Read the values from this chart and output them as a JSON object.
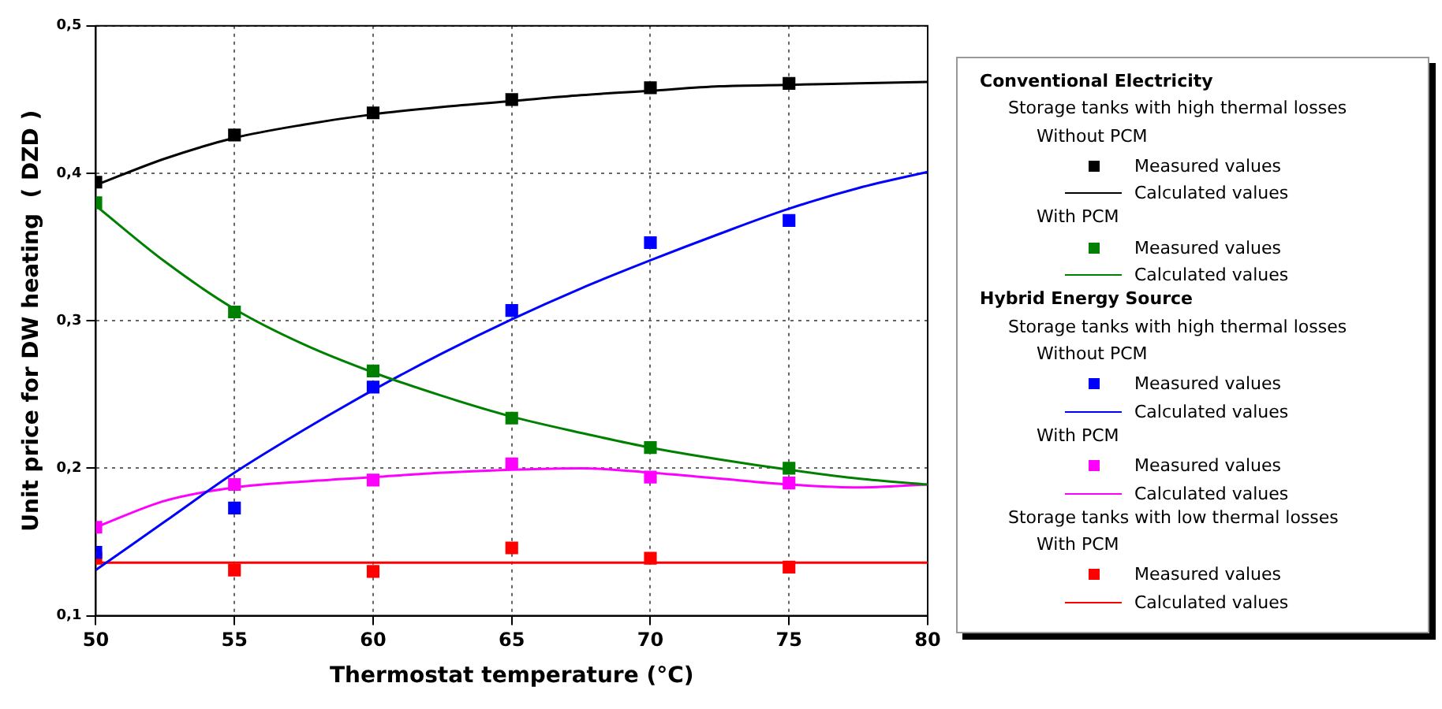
{
  "chart_data": {
    "type": "line",
    "xlabel": "Thermostat temperature (°C)",
    "ylabel": "Unit price for DW heating  ( DZD )",
    "xlim": [
      50,
      80
    ],
    "xticks": [
      50,
      55,
      60,
      65,
      70,
      75,
      80
    ],
    "ylim": [
      0.1,
      0.5
    ],
    "yticks": [
      {
        "value": 0.1,
        "label": "0,1"
      },
      {
        "value": 0.2,
        "label": "0,2"
      },
      {
        "value": 0.3,
        "label": "0,3"
      },
      {
        "value": 0.4,
        "label": "0,4"
      },
      {
        "value": 0.5,
        "label": "0,5"
      }
    ],
    "grid": true,
    "legend": "right",
    "line_style": "solid",
    "annotations": [
      "Conventional Electricity",
      "Storage tanks with high thermal losses",
      "Without PCM",
      "With PCM",
      "Hybrid Energy Source",
      "Storage tanks with high thermal losses",
      "Without PCM",
      "With PCM",
      "Storage tanks with low thermal losses",
      "With PCM"
    ],
    "series": [
      {
        "name": "Measured values",
        "type": "scatter",
        "marker": "square",
        "color": "#000000",
        "x": [
          50,
          55,
          60,
          65,
          70,
          75
        ],
        "values": [
          0.394,
          0.426,
          0.441,
          0.45,
          0.458,
          0.461
        ]
      },
      {
        "name": "Calculated values",
        "type": "line",
        "marker": "none",
        "color": "#000000",
        "x": [
          50,
          52.5,
          55,
          57.5,
          60,
          62.5,
          65,
          67.5,
          70,
          72.5,
          75,
          77.5,
          80
        ],
        "values": [
          0.392,
          0.41,
          0.424,
          0.433,
          0.44,
          0.445,
          0.449,
          0.453,
          0.456,
          0.459,
          0.46,
          0.461,
          0.462
        ]
      },
      {
        "name": "Measured values",
        "type": "scatter",
        "marker": "square",
        "color": "#008000",
        "x": [
          50,
          55,
          60,
          65,
          70,
          75
        ],
        "values": [
          0.38,
          0.306,
          0.266,
          0.234,
          0.214,
          0.2
        ]
      },
      {
        "name": "Calculated values",
        "type": "line",
        "marker": "none",
        "color": "#008000",
        "x": [
          50,
          52.5,
          55,
          57.5,
          60,
          62.5,
          65,
          67.5,
          70,
          72.5,
          75,
          77.5,
          80
        ],
        "values": [
          0.378,
          0.34,
          0.308,
          0.284,
          0.265,
          0.249,
          0.235,
          0.224,
          0.214,
          0.206,
          0.199,
          0.193,
          0.189
        ]
      },
      {
        "name": "Measured values",
        "type": "scatter",
        "marker": "square",
        "color": "#0000ff",
        "x": [
          50,
          55,
          60,
          65,
          70,
          75
        ],
        "values": [
          0.143,
          0.173,
          0.255,
          0.307,
          0.353,
          0.368
        ]
      },
      {
        "name": "Calculated values",
        "type": "line",
        "marker": "none",
        "color": "#0000ff",
        "x": [
          50,
          52.5,
          55,
          57.5,
          60,
          62.5,
          65,
          67.5,
          70,
          72.5,
          75,
          77.5,
          80
        ],
        "values": [
          0.131,
          0.164,
          0.197,
          0.226,
          0.253,
          0.278,
          0.301,
          0.322,
          0.341,
          0.359,
          0.376,
          0.39,
          0.401
        ]
      },
      {
        "name": "Measured values",
        "type": "scatter",
        "marker": "square",
        "color": "#ff00ff",
        "x": [
          50,
          55,
          60,
          65,
          70,
          75
        ],
        "values": [
          0.16,
          0.189,
          0.192,
          0.203,
          0.194,
          0.19
        ]
      },
      {
        "name": "Calculated values",
        "type": "line",
        "marker": "none",
        "color": "#ff00ff",
        "x": [
          50,
          52.5,
          55,
          57.5,
          60,
          62.5,
          65,
          67.5,
          70,
          72.5,
          75,
          77.5,
          80
        ],
        "values": [
          0.16,
          0.178,
          0.187,
          0.191,
          0.194,
          0.197,
          0.199,
          0.2,
          0.197,
          0.193,
          0.189,
          0.187,
          0.189
        ]
      },
      {
        "name": "Measured values",
        "type": "scatter",
        "marker": "square",
        "color": "#ff0000",
        "x": [
          50,
          55,
          60,
          65,
          70,
          75
        ],
        "values": [
          0.139,
          0.131,
          0.13,
          0.146,
          0.139,
          0.133
        ]
      },
      {
        "name": "Calculated values",
        "type": "line",
        "marker": "none",
        "color": "#ff0000",
        "x": [
          50,
          80
        ],
        "values": [
          0.136,
          0.136
        ]
      }
    ]
  }
}
